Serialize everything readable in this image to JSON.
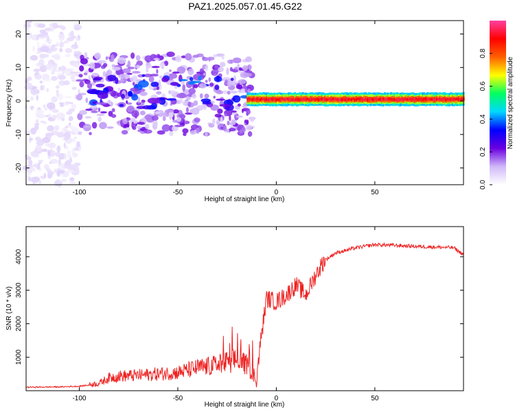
{
  "figure": {
    "title": "PAZ1.2025.057.01.45.G22"
  },
  "chart_data": [
    {
      "type": "heatmap",
      "xlabel": "Height of straight line (km)",
      "ylabel": "Frequency (Hz)",
      "xlim": [
        -127,
        95
      ],
      "ylim": [
        -25,
        24
      ],
      "x_ticks": [
        "-100",
        "-50",
        "0",
        "50"
      ],
      "y_ticks": [
        "20",
        "10",
        "0",
        "-10",
        "-20"
      ],
      "colorbar": {
        "label": "Normalized spectral amplitude",
        "range": [
          0,
          1
        ],
        "ticks": [
          "0.0",
          "0.2",
          "0.4",
          "0.6",
          "0.8"
        ],
        "colormap": [
          "#ffffff",
          "#cfb8f8",
          "#6a00e0",
          "#0000ff",
          "#00d8ff",
          "#00ff60",
          "#ffff00",
          "#ff6000",
          "#ff0000",
          "#ff40a0"
        ]
      },
      "features": [
        {
          "x_range": [
            -127,
            -100
          ],
          "freq_range": [
            -25,
            24
          ],
          "amplitude": 0.05
        },
        {
          "x_range": [
            -100,
            -12
          ],
          "freq_range": [
            -10,
            14
          ],
          "amplitude": 0.15
        },
        {
          "x_range": [
            -95,
            -15
          ],
          "freq_range": [
            -2,
            8
          ],
          "amplitude": 0.25
        },
        {
          "x_range": [
            -15,
            95
          ],
          "freq_range": [
            -1,
            2
          ],
          "amplitude": 0.9
        }
      ]
    },
    {
      "type": "line",
      "xlabel": "Height of straight line (km)",
      "ylabel": "SNR (10 * v/v)",
      "xlim": [
        -127,
        95
      ],
      "ylim": [
        0,
        4900
      ],
      "x_ticks": [
        "-100",
        "-50",
        "0",
        "50"
      ],
      "y_ticks": [
        "1000",
        "2000",
        "3000",
        "4000"
      ],
      "color": "#ee2222",
      "series": [
        {
          "x": [
            -127,
            -110,
            -100,
            -90,
            -85,
            -80,
            -70,
            -60,
            -50,
            -40,
            -30,
            -20,
            -15,
            -10,
            -8,
            -5,
            0,
            5,
            10,
            15,
            20,
            25,
            30,
            40,
            50,
            60,
            70,
            80,
            90,
            95
          ],
          "values": [
            100,
            110,
            130,
            200,
            350,
            400,
            420,
            460,
            500,
            620,
            700,
            850,
            700,
            300,
            1400,
            2700,
            2600,
            2800,
            3100,
            2800,
            3400,
            3900,
            4100,
            4250,
            4350,
            4330,
            4300,
            4280,
            4260,
            4050
          ]
        }
      ]
    }
  ]
}
